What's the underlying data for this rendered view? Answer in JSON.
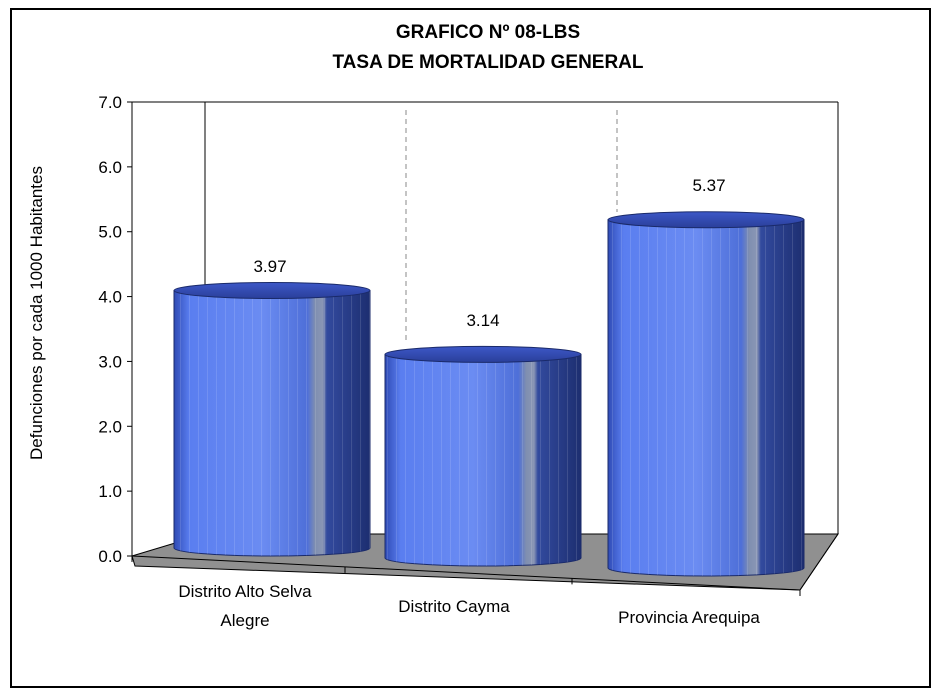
{
  "chart_data": {
    "type": "bar",
    "title_line1": "GRAFICO Nº 08-LBS",
    "title_line2": "TASA DE MORTALIDAD GENERAL",
    "ylabel": "Defunciones por cada 1000 Habitantes",
    "xlabel": "",
    "categories": [
      [
        "Distrito Alto Selva",
        "Alegre"
      ],
      [
        "Distrito Cayma"
      ],
      [
        "Provincia Arequipa"
      ]
    ],
    "values": [
      3.97,
      3.14,
      5.37
    ],
    "value_labels": [
      "3.97",
      "3.14",
      "5.37"
    ],
    "ylim": [
      0,
      7
    ],
    "yticks": [
      "0.0",
      "1.0",
      "2.0",
      "3.0",
      "4.0",
      "5.0",
      "6.0",
      "7.0"
    ],
    "bar_style": "3d-cylinder",
    "bar_color": "#4f6fe0",
    "floor_color": "#909090",
    "grid": false
  }
}
